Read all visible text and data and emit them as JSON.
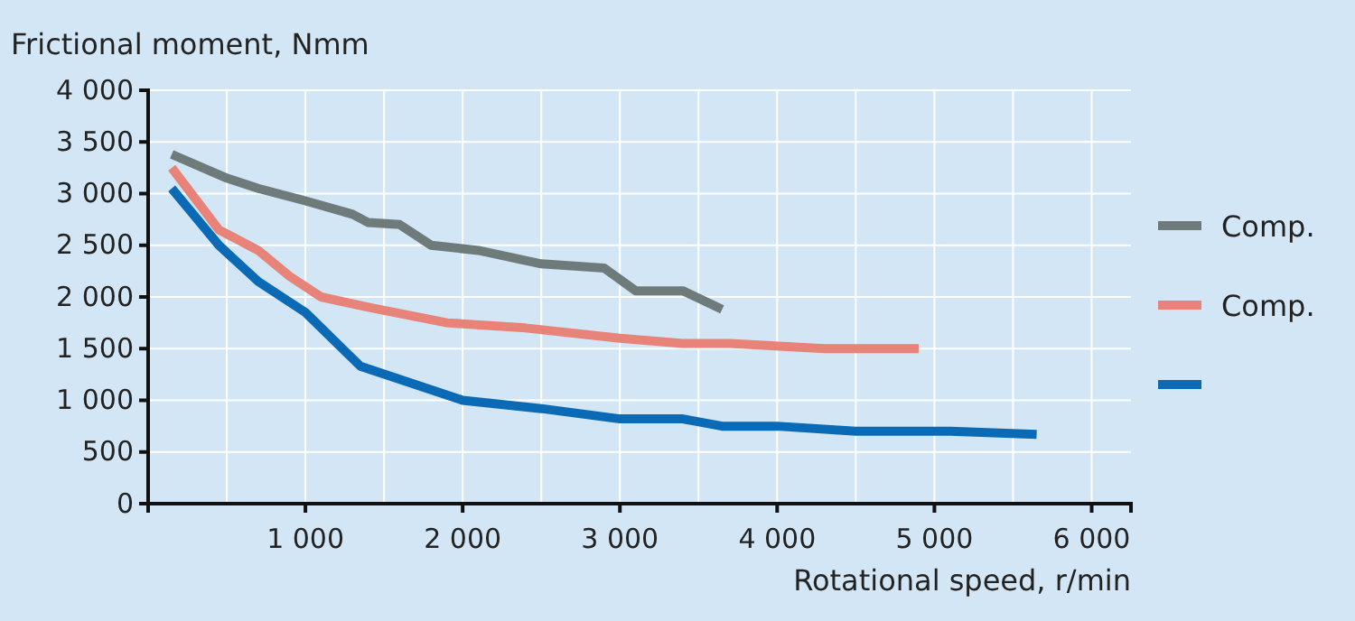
{
  "chart_data": {
    "type": "line",
    "ylabel": "Frictional moment, Nmm",
    "xlabel": "Rotational speed, r/min",
    "xlim": [
      0,
      6250
    ],
    "ylim": [
      0,
      4000
    ],
    "xticks": [
      {
        "value": 1000,
        "label": "1 000"
      },
      {
        "value": 2000,
        "label": "2 000"
      },
      {
        "value": 3000,
        "label": "3 000"
      },
      {
        "value": 4000,
        "label": "4 000"
      },
      {
        "value": 5000,
        "label": "5 000"
      },
      {
        "value": 6000,
        "label": "6 000"
      }
    ],
    "yticks": [
      0,
      500,
      {
        "value": 1000,
        "label": "1 000"
      },
      {
        "value": 1500,
        "label": "1 500"
      },
      {
        "value": 2000,
        "label": "2 000"
      },
      {
        "value": 2500,
        "label": "2 500"
      },
      {
        "value": 3000,
        "label": "3 000"
      },
      {
        "value": 3500,
        "label": "3 500"
      },
      {
        "value": 4000,
        "label": "4 000"
      }
    ],
    "grid": true,
    "legend": "right",
    "line_style": "solid",
    "marker": "none",
    "series": [
      {
        "name": "Comp.",
        "color": "#6f7b7b",
        "x": [
          150,
          500,
          700,
          1000,
          1300,
          1400,
          1600,
          1800,
          2100,
          2500,
          2900,
          3100,
          3400,
          3650
        ],
        "values": [
          3380,
          3150,
          3050,
          2930,
          2800,
          2720,
          2700,
          2500,
          2450,
          2320,
          2280,
          2060,
          2060,
          1880
        ]
      },
      {
        "name": "Comp.",
        "color": "#e8837a",
        "x": [
          150,
          450,
          700,
          900,
          1100,
          1400,
          1900,
          2400,
          3000,
          3400,
          3700,
          4300,
          4900
        ],
        "values": [
          3250,
          2650,
          2450,
          2200,
          2000,
          1900,
          1750,
          1700,
          1600,
          1550,
          1550,
          1500,
          1500
        ]
      },
      {
        "color": "#0a6ab5",
        "x": [
          150,
          450,
          700,
          1000,
          1350,
          2000,
          2500,
          3000,
          3400,
          3650,
          4000,
          4500,
          5100,
          5650
        ],
        "values": [
          3050,
          2500,
          2150,
          1850,
          1330,
          1000,
          920,
          820,
          820,
          750,
          750,
          700,
          700,
          670
        ]
      }
    ]
  }
}
